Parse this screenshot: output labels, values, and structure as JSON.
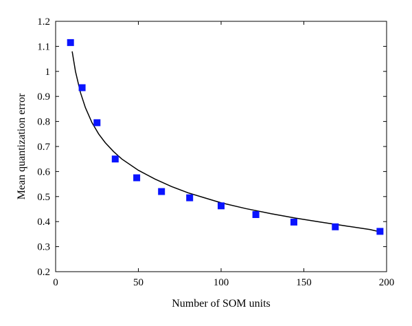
{
  "chart_data": {
    "type": "scatter",
    "xlabel": "Number of SOM units",
    "ylabel": "Mean quantization error",
    "xlim": [
      0,
      200
    ],
    "ylim": [
      0.2,
      1.2
    ],
    "xticks": [
      0,
      50,
      100,
      150,
      200
    ],
    "xtick_labels": [
      "0",
      "50",
      "100",
      "150",
      "200"
    ],
    "yticks": [
      0.2,
      0.3,
      0.4,
      0.5,
      0.6,
      0.7,
      0.8,
      0.9,
      1.0,
      1.1,
      1.2
    ],
    "ytick_labels": [
      "0.2",
      "0.3",
      "0.4",
      "0.5",
      "0.6",
      "0.7",
      "0.8",
      "0.9",
      "1",
      "1.1",
      "1.2"
    ],
    "grid": false,
    "legend": "none",
    "series": [
      {
        "kind": "scatter",
        "marker": "square",
        "color": "#0a14ff",
        "x": [
          9,
          16,
          25,
          36,
          49,
          64,
          81,
          100,
          121,
          144,
          169,
          196
        ],
        "y": [
          1.115,
          0.935,
          0.795,
          0.65,
          0.575,
          0.52,
          0.495,
          0.463,
          0.428,
          0.398,
          0.379,
          0.361
        ]
      },
      {
        "kind": "line",
        "color": "#000000",
        "x": [
          10,
          12,
          15,
          18,
          22,
          26,
          30,
          35,
          40,
          50,
          60,
          70,
          80,
          90,
          100,
          115,
          130,
          145,
          160,
          175,
          190,
          198
        ],
        "y": [
          1.08,
          1.0,
          0.915,
          0.855,
          0.795,
          0.75,
          0.715,
          0.68,
          0.65,
          0.605,
          0.57,
          0.54,
          0.515,
          0.495,
          0.475,
          0.452,
          0.432,
          0.414,
          0.398,
          0.383,
          0.368,
          0.356
        ]
      }
    ]
  }
}
